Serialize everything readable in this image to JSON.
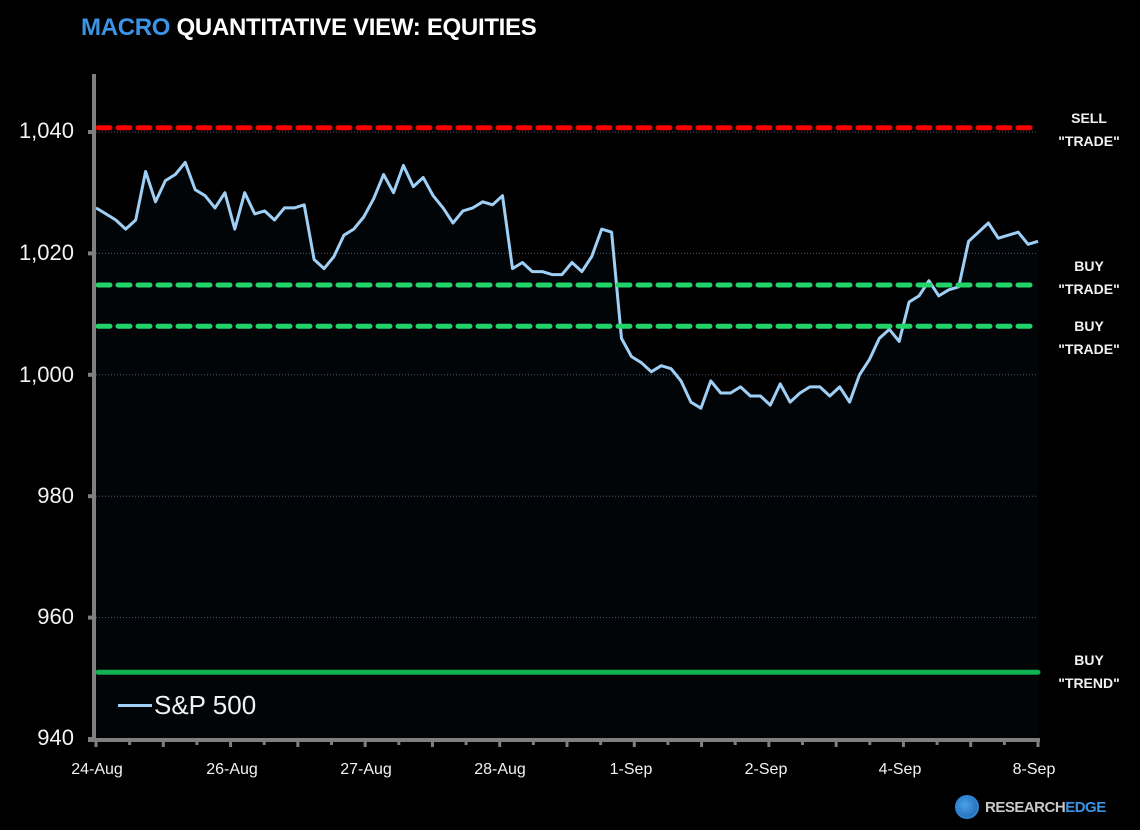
{
  "header": {
    "title_accent": "MACRO",
    "title_rest": "QUANTITATIVE VIEW: EQUITIES"
  },
  "colors": {
    "title_accent": "#3a95e6",
    "line": "#9fcff5",
    "fill_top": "#2a6eb0",
    "fill_bottom": "#020508",
    "sell_trade": "#ff0000",
    "buy_trade": "#22d36a",
    "buy_trend": "#12b050",
    "axis": "#7f7f7f"
  },
  "legend": {
    "label": "S&P 500"
  },
  "levels": {
    "sell_trade": {
      "line1": "SELL",
      "line2": "\"TRADE\""
    },
    "buy_trade_upper": {
      "line1": "BUY",
      "line2": "\"TRADE\""
    },
    "buy_trade_lower": {
      "line1": "BUY",
      "line2": "\"TRADE\""
    },
    "buy_trend": {
      "line1": "BUY",
      "line2": "\"TREND\""
    }
  },
  "yaxis": {
    "ticks": [
      "1,040",
      "1,020",
      "1,000",
      "980",
      "960",
      "940"
    ]
  },
  "xaxis": {
    "ticks": [
      "24-Aug",
      "26-Aug",
      "27-Aug",
      "28-Aug",
      "1-Sep",
      "2-Sep",
      "4-Sep",
      "8-Sep"
    ]
  },
  "branding": {
    "part1": "RESEARCH",
    "part2": "EDGE"
  },
  "chart_data": {
    "type": "area",
    "title": "MACRO QUANTITATIVE VIEW: EQUITIES",
    "xlabel": "",
    "ylabel": "",
    "ylim": [
      940,
      1050
    ],
    "yticks": [
      940,
      960,
      980,
      1000,
      1020,
      1040
    ],
    "grid": "horizontal dotted",
    "legend_position": "bottom-left inside",
    "categories": [
      "24-Aug",
      "26-Aug",
      "27-Aug",
      "28-Aug",
      "1-Sep",
      "2-Sep",
      "4-Sep",
      "8-Sep"
    ],
    "series": [
      {
        "name": "S&P 500",
        "values": [
          1027.5,
          1026.5,
          1025.5,
          1024,
          1025.5,
          1033.5,
          1028.5,
          1032,
          1033,
          1035,
          1030.5,
          1029.5,
          1027.5,
          1030,
          1024,
          1030,
          1026.5,
          1027,
          1025.5,
          1027.5,
          1027.5,
          1028,
          1019,
          1017.5,
          1019.5,
          1023,
          1024,
          1026,
          1029,
          1033,
          1030,
          1034.5,
          1031,
          1032.5,
          1029.5,
          1027.5,
          1025,
          1027,
          1027.5,
          1028.5,
          1028,
          1029.5,
          1017.5,
          1018.5,
          1017,
          1017,
          1016.5,
          1016.5,
          1018.5,
          1017,
          1019.5,
          1024,
          1023.5,
          1006,
          1003,
          1002,
          1000.5,
          1001.5,
          1001,
          999,
          995.5,
          994.5,
          999,
          997,
          997,
          998,
          996.5,
          996.5,
          995,
          998.5,
          995.5,
          997,
          998,
          998,
          996.5,
          998,
          995.5,
          1000,
          1002.5,
          1006,
          1007.5,
          1005.5,
          1012,
          1013,
          1015.5,
          1013,
          1014,
          1014.5,
          1022,
          1023.5,
          1025,
          1022.5,
          1023,
          1023.5,
          1021.5,
          1022
        ]
      }
    ],
    "reference_lines": [
      {
        "label": "SELL \"TRADE\"",
        "value": 1040.7,
        "style": "dashed",
        "color": "#ff0000"
      },
      {
        "label": "BUY \"TRADE\"",
        "value": 1014.8,
        "style": "dashed",
        "color": "#22d36a"
      },
      {
        "label": "BUY \"TRADE\"",
        "value": 1008,
        "style": "dashed",
        "color": "#22d36a"
      },
      {
        "label": "BUY \"TREND\"",
        "value": 951,
        "style": "solid",
        "color": "#12b050"
      }
    ]
  }
}
